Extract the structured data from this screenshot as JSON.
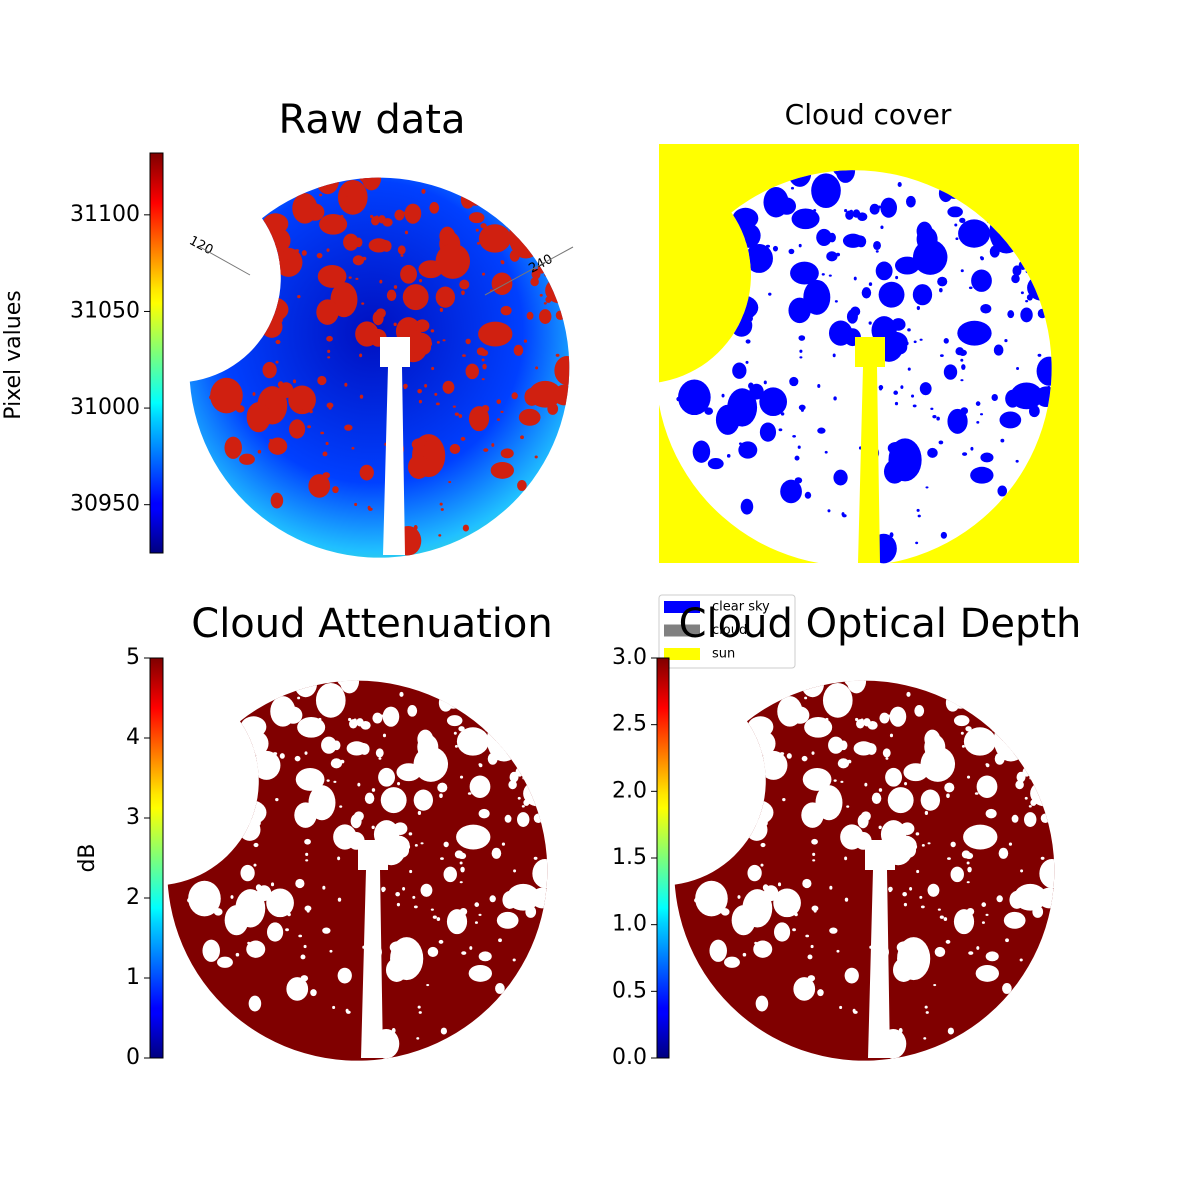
{
  "chart_data": [
    {
      "type": "image",
      "title": "Raw data",
      "annotations": [
        "120",
        "240"
      ],
      "colorbar": {
        "label": "Pixel values",
        "colormap": "jet",
        "lim": [
          30925,
          31132
        ],
        "ticks": [
          30950,
          31000,
          31050,
          31100
        ]
      }
    },
    {
      "type": "mask",
      "title": "Cloud cover",
      "legend": [
        {
          "name": "clear sky",
          "color": "#0000ff"
        },
        {
          "name": "cloud",
          "color": "#808080"
        },
        {
          "name": "sun",
          "color": "#ffff00"
        }
      ]
    },
    {
      "type": "image",
      "title": "Cloud Attenuation",
      "colorbar": {
        "label": "dB",
        "colormap": "jet",
        "lim": [
          0,
          5
        ],
        "ticks": [
          0,
          1,
          2,
          3,
          4,
          5
        ]
      }
    },
    {
      "type": "image",
      "title": "Cloud Optical Depth",
      "colorbar": {
        "colormap": "jet",
        "lim": [
          0,
          3
        ],
        "ticks": [
          {
            "value": 0,
            "label": "0.0"
          },
          0.5,
          {
            "value": 1,
            "label": "1.0"
          },
          1.5,
          {
            "value": 2,
            "label": "2.0"
          },
          2.5,
          {
            "value": 3,
            "label": "3.0"
          }
        ]
      }
    }
  ]
}
